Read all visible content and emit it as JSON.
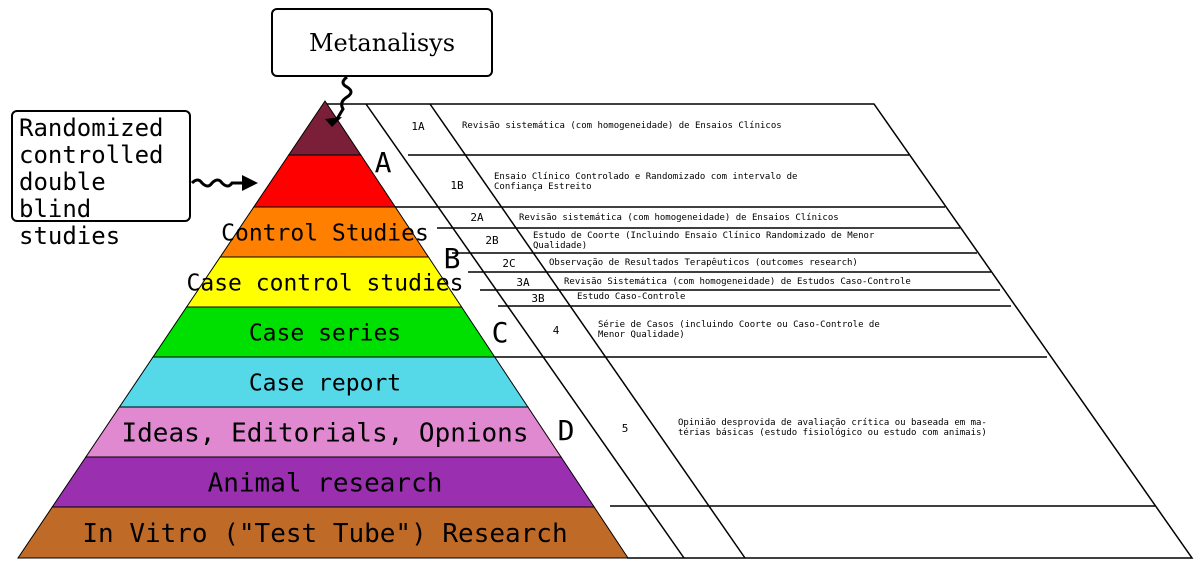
{
  "callouts": {
    "metanalysis": "Metanalisys",
    "randomized": "Randomized\ncontrolled\ndouble blind\nstudies"
  },
  "pyramid": {
    "layers": [
      {
        "label": "",
        "color": "#7b1f38"
      },
      {
        "label": "",
        "color": "#ff0000"
      },
      {
        "label": "Control Studies",
        "color": "#ff8000"
      },
      {
        "label": "Case control studies",
        "color": "#ffff00"
      },
      {
        "label": "Case series",
        "color": "#00e000"
      },
      {
        "label": "Case report",
        "color": "#55d8e8"
      },
      {
        "label": "Ideas, Editorials, Opnions",
        "color": "#e088d0"
      },
      {
        "label": "Animal research",
        "color": "#9a30b0"
      },
      {
        "label": "In Vitro (\"Test Tube\") Research",
        "color": "#c06a28"
      }
    ]
  },
  "grades": [
    "A",
    "B",
    "C",
    "D"
  ],
  "levels": [
    {
      "code": "1A",
      "text": "Revisão sistemática (com homogeneidade) de Ensaios Clínicos"
    },
    {
      "code": "1B",
      "text": "Ensaio Clínico Controlado e Randomizado com intervalo de\nConfiança Estreito"
    },
    {
      "code": "2A",
      "text": "Revisão sistemática (com homogeneidade) de Ensaios Clínicos"
    },
    {
      "code": "2B",
      "text": "Estudo de Coorte (Incluindo Ensaio Clínico Randomizado de Menor\nQualidade)"
    },
    {
      "code": "2C",
      "text": "Observação de Resultados Terapêuticos (outcomes research)"
    },
    {
      "code": "3A",
      "text": "Revisão Sistemática (com homogeneidade) de Estudos Caso-Controle"
    },
    {
      "code": "3B",
      "text": "Estudo Caso-Controle"
    },
    {
      "code": "4",
      "text": "Série de Casos (incluindo Coorte ou Caso-Controle de\nMenor Qualidade)"
    },
    {
      "code": "5",
      "text": "Opinião desprovida de avaliação crítica ou baseada em ma-\ntérias básicas (estudo fisiológico ou estudo com animais)"
    }
  ]
}
